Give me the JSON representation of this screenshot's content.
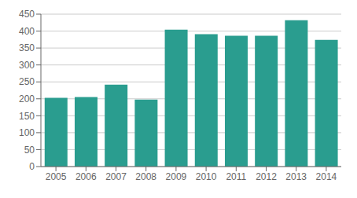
{
  "chart_data": {
    "type": "bar",
    "categories": [
      "2005",
      "2006",
      "2007",
      "2008",
      "2009",
      "2010",
      "2011",
      "2012",
      "2013",
      "2014"
    ],
    "values": [
      203,
      205,
      242,
      198,
      404,
      391,
      386,
      386,
      432,
      374
    ],
    "color": "#2a9d8f",
    "ylim": [
      0,
      450
    ],
    "yticks": [
      0,
      50,
      100,
      150,
      200,
      250,
      300,
      350,
      400,
      450
    ],
    "grid": true
  }
}
